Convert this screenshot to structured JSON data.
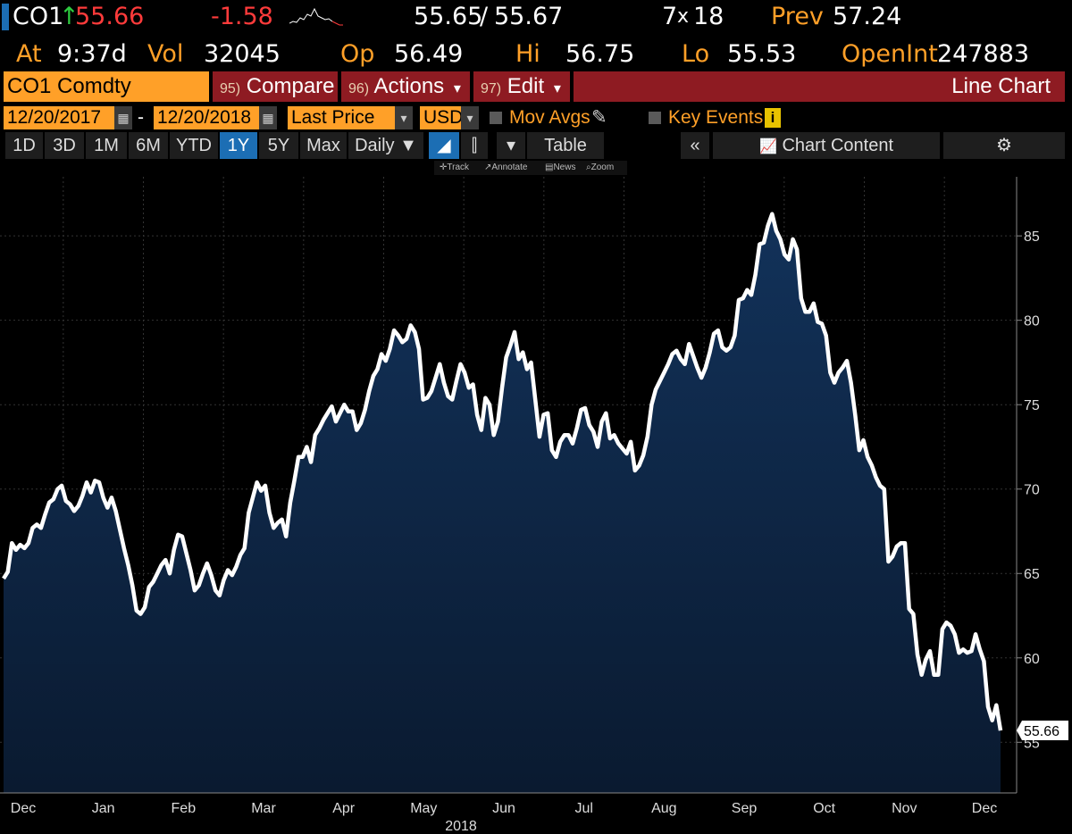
{
  "header": {
    "ticker": "CO1",
    "arrow": "↑",
    "last": "55.66",
    "change": "-1.58",
    "bid_ask_bid": "55.65",
    "bid_ask_sep": "/",
    "bid_ask_ask": "55.67",
    "size_left": "7",
    "size_x": "x",
    "size_right": "18",
    "prev_label": "Prev",
    "prev_value": "57.24",
    "at_label": "At",
    "at_value": "9:37d",
    "vol_label": "Vol",
    "vol_value": "32045",
    "op_label": "Op",
    "op_value": "56.49",
    "hi_label": "Hi",
    "hi_value": "56.75",
    "lo_label": "Lo",
    "lo_value": "55.53",
    "oi_label": "OpenInt",
    "oi_value": "247883"
  },
  "toolbar": {
    "security": "CO1 Comdty",
    "compare_num": "95)",
    "compare_label": "Compare",
    "actions_num": "96)",
    "actions_label": "Actions",
    "edit_num": "97)",
    "edit_label": "Edit",
    "chart_type": "Line Chart",
    "dropdown": "▾"
  },
  "controls": {
    "start_date": "12/20/2017",
    "dash": "-",
    "end_date": "12/20/2018",
    "field": "Last Price",
    "currency": "USD",
    "mov_avgs": "Mov Avgs",
    "key_events": "Key Events",
    "info": "i",
    "pencil": "✎",
    "cal": "▦",
    "arrow": "▾"
  },
  "ranges": {
    "items": [
      "1D",
      "3D",
      "1M",
      "6M",
      "YTD",
      "1Y",
      "5Y",
      "Max"
    ],
    "selected": "1Y",
    "frequency": "Daily ▼",
    "table": "Table",
    "collapse": "«",
    "chart_content": "Chart Content",
    "gear": "⚙",
    "line_icon": "◢",
    "bar_icon": "⫿",
    "dd": "▾"
  },
  "tools": {
    "track": "Track",
    "annotate": "Annotate",
    "news": "News",
    "zoom": "Zoom"
  },
  "chart_data": {
    "type": "area",
    "title": "CO1 Comdty Last Price",
    "ylim": [
      52.0,
      88.5
    ],
    "yticks": [
      55,
      60,
      65,
      70,
      75,
      80,
      85
    ],
    "last_label": "55.66",
    "x_ticks": [
      "Dec",
      "Jan",
      "Feb",
      "Mar",
      "Apr",
      "May",
      "Jun",
      "Jul",
      "Aug",
      "Sep",
      "Oct",
      "Nov",
      "Dec"
    ],
    "x_year": "2018",
    "colors": {
      "line": "#ffffff",
      "fill_top": "#12325a",
      "fill_bottom": "#0a1a30",
      "grid": "#333333",
      "bg": "#000000"
    },
    "values": [
      64.7,
      65.1,
      66.8,
      66.4,
      66.7,
      66.5,
      66.8,
      67.7,
      67.9,
      67.7,
      68.5,
      69.2,
      69.4,
      70.0,
      70.2,
      69.3,
      69.1,
      68.7,
      69.0,
      69.6,
      70.4,
      69.8,
      70.5,
      70.4,
      69.5,
      68.9,
      69.5,
      68.7,
      67.6,
      66.5,
      65.5,
      64.3,
      62.8,
      62.6,
      63.0,
      64.2,
      64.5,
      65.0,
      65.5,
      65.8,
      65.0,
      66.4,
      67.3,
      67.2,
      66.2,
      65.2,
      64.0,
      64.3,
      65.0,
      65.6,
      64.9,
      64.0,
      63.7,
      64.6,
      65.2,
      64.9,
      65.4,
      66.1,
      66.5,
      68.6,
      69.5,
      70.4,
      69.9,
      70.2,
      68.6,
      67.7,
      68.0,
      68.2,
      67.2,
      69.2,
      70.5,
      71.9,
      71.9,
      72.5,
      71.6,
      73.2,
      73.6,
      74.1,
      74.5,
      74.9,
      74.0,
      74.5,
      75.0,
      74.6,
      74.6,
      73.5,
      73.9,
      74.7,
      75.8,
      76.7,
      77.1,
      78.0,
      77.6,
      78.3,
      79.4,
      79.1,
      78.7,
      78.9,
      79.7,
      79.3,
      78.3,
      75.3,
      75.4,
      75.8,
      76.6,
      77.4,
      76.3,
      75.5,
      75.3,
      76.4,
      77.4,
      76.9,
      76.0,
      76.2,
      74.4,
      73.5,
      75.4,
      75.0,
      73.2,
      74.0,
      76.0,
      77.8,
      78.5,
      79.3,
      77.7,
      78.1,
      77.1,
      77.5,
      75.3,
      73.1,
      74.4,
      74.5,
      72.3,
      71.9,
      72.8,
      73.2,
      73.2,
      72.7,
      73.6,
      74.7,
      74.8,
      73.8,
      73.4,
      72.5,
      74.0,
      74.5,
      73.0,
      73.2,
      72.7,
      72.4,
      72.1,
      72.8,
      71.1,
      71.4,
      72.0,
      73.1,
      75.0,
      75.9,
      76.4,
      76.9,
      77.4,
      78.0,
      78.2,
      77.7,
      77.4,
      78.6,
      77.9,
      77.2,
      76.6,
      77.2,
      78.1,
      79.2,
      79.4,
      78.4,
      78.2,
      78.4,
      79.1,
      81.2,
      81.3,
      81.8,
      81.5,
      82.7,
      84.5,
      84.6,
      85.6,
      86.3,
      85.3,
      84.8,
      83.9,
      83.6,
      84.8,
      84.2,
      81.3,
      80.5,
      80.5,
      81.0,
      79.9,
      79.8,
      79.1,
      76.9,
      76.3,
      76.9,
      77.2,
      77.6,
      76.3,
      74.4,
      72.3,
      72.9,
      71.9,
      71.4,
      70.7,
      70.2,
      70.0,
      65.7,
      66.0,
      66.6,
      66.8,
      66.8,
      62.9,
      62.6,
      60.2,
      59.0,
      59.9,
      60.4,
      59.0,
      59.0,
      61.7,
      62.1,
      61.9,
      61.4,
      60.3,
      60.5,
      60.3,
      60.4,
      61.4,
      60.5,
      59.8,
      57.1,
      56.3,
      57.2,
      55.7
    ]
  }
}
